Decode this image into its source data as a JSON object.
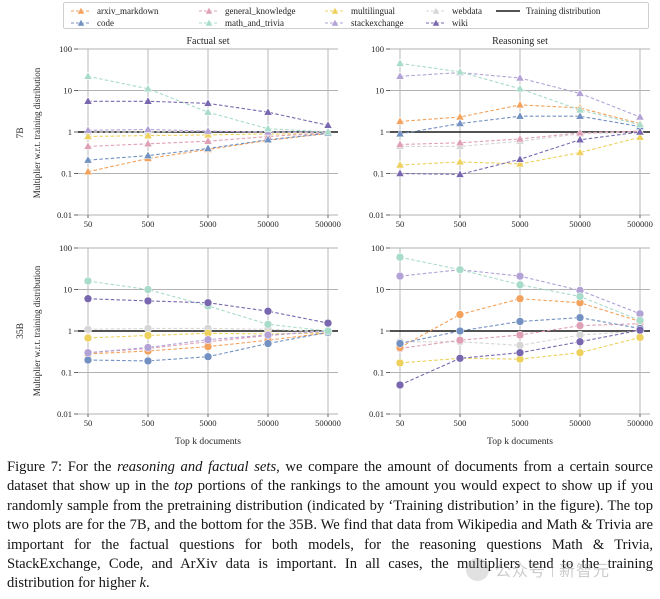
{
  "legend": {
    "training_label": "Training distribution",
    "training_color": "#1a1a1a",
    "entries": [
      {
        "key": "arxiv_markdown",
        "label": "arxiv_markdown",
        "color": "#F2A25C"
      },
      {
        "key": "code",
        "label": "code",
        "color": "#7291C2"
      },
      {
        "key": "general_knowledge",
        "label": "general_knowledge",
        "color": "#DFA0B6"
      },
      {
        "key": "math_and_trivia",
        "label": "math_and_trivia",
        "color": "#A9DBCB"
      },
      {
        "key": "multilingual",
        "label": "multilingual",
        "color": "#EDD15C"
      },
      {
        "key": "stackexchange",
        "label": "stackexchange",
        "color": "#B2A2D6"
      },
      {
        "key": "webdata",
        "label": "webdata",
        "color": "#D6D6D6"
      },
      {
        "key": "wiki",
        "label": "wiki",
        "color": "#7867AE"
      }
    ]
  },
  "chart_data": [
    {
      "id": "7b-factual",
      "type": "line",
      "title": "Factual set",
      "xlabel": "",
      "row_label": "7B",
      "ylabel": "Multiplier w.r.t. training distribution",
      "xscale": "log",
      "yscale": "log",
      "ylim": [
        0.01,
        100
      ],
      "grid": true,
      "x": [
        50,
        500,
        5000,
        50000,
        500000
      ],
      "xtick_labels": [
        "50",
        "500",
        "5000",
        "50000",
        "500000"
      ],
      "yticks": [
        100,
        10,
        1,
        0.1,
        0.01
      ],
      "ytick_labels": [
        "100",
        "10",
        "1",
        "0.1",
        "0.01"
      ],
      "marker": "triangle",
      "training_distribution": 1,
      "series": [
        {
          "name": "webdata",
          "values": [
            1.0,
            1.0,
            1.05,
            1.0,
            0.95
          ]
        },
        {
          "name": "multilingual",
          "values": [
            0.78,
            0.82,
            0.85,
            0.9,
            0.9
          ]
        },
        {
          "name": "general_knowledge",
          "values": [
            0.45,
            0.52,
            0.6,
            0.78,
            0.95
          ]
        },
        {
          "name": "arxiv_markdown",
          "values": [
            0.11,
            0.23,
            0.38,
            0.63,
            0.92
          ]
        },
        {
          "name": "code",
          "values": [
            0.21,
            0.27,
            0.4,
            0.65,
            0.93
          ]
        },
        {
          "name": "stackexchange",
          "values": [
            1.1,
            1.15,
            1.05,
            1.0,
            1.0
          ]
        },
        {
          "name": "math_and_trivia",
          "values": [
            22,
            11,
            3.0,
            1.2,
            1.0
          ]
        },
        {
          "name": "wiki",
          "values": [
            5.5,
            5.5,
            4.9,
            3.0,
            1.45
          ]
        }
      ]
    },
    {
      "id": "7b-reasoning",
      "type": "line",
      "title": "Reasoning set",
      "xlabel": "",
      "row_label": "",
      "ylabel": "",
      "xscale": "log",
      "yscale": "log",
      "ylim": [
        0.01,
        100
      ],
      "grid": true,
      "x": [
        50,
        500,
        5000,
        50000,
        500000
      ],
      "xtick_labels": [
        "50",
        "500",
        "5000",
        "50000",
        "500000"
      ],
      "yticks": [
        100,
        10,
        1,
        0.1,
        0.01
      ],
      "ytick_labels": [
        "100",
        "10",
        "1",
        "0.1",
        "0.01"
      ],
      "marker": "triangle",
      "training_distribution": 1,
      "series": [
        {
          "name": "webdata",
          "values": [
            0.45,
            0.45,
            0.6,
            0.9,
            1.0
          ]
        },
        {
          "name": "multilingual",
          "values": [
            0.16,
            0.19,
            0.17,
            0.32,
            0.75
          ]
        },
        {
          "name": "general_knowledge",
          "values": [
            0.5,
            0.55,
            0.68,
            0.95,
            1.05
          ]
        },
        {
          "name": "arxiv_markdown",
          "values": [
            1.8,
            2.3,
            4.5,
            3.8,
            1.6
          ]
        },
        {
          "name": "code",
          "values": [
            0.9,
            1.6,
            2.4,
            2.4,
            1.35
          ]
        },
        {
          "name": "stackexchange",
          "values": [
            22,
            27,
            20,
            8.5,
            2.3
          ]
        },
        {
          "name": "math_and_trivia",
          "values": [
            45,
            28,
            11,
            3.4,
            1.5
          ]
        },
        {
          "name": "wiki",
          "values": [
            0.1,
            0.095,
            0.22,
            0.65,
            1.0
          ]
        }
      ]
    },
    {
      "id": "35b-factual",
      "type": "line",
      "title": "",
      "xlabel": "Top k documents",
      "row_label": "35B",
      "ylabel": "Multiplier w.r.t. training distribution",
      "xscale": "log",
      "yscale": "log",
      "ylim": [
        0.01,
        100
      ],
      "grid": true,
      "x": [
        50,
        500,
        5000,
        50000,
        500000
      ],
      "xtick_labels": [
        "50",
        "500",
        "5000",
        "50000",
        "500000"
      ],
      "yticks": [
        100,
        10,
        1,
        0.1,
        0.01
      ],
      "ytick_labels": [
        "100",
        "10",
        "1",
        "0.1",
        "0.01"
      ],
      "marker": "circle",
      "training_distribution": 1,
      "series": [
        {
          "name": "webdata",
          "values": [
            1.1,
            1.15,
            1.15,
            1.1,
            0.95
          ]
        },
        {
          "name": "multilingual",
          "values": [
            0.68,
            0.78,
            0.88,
            0.85,
            0.9
          ]
        },
        {
          "name": "general_knowledge",
          "values": [
            0.3,
            0.38,
            0.55,
            0.78,
            1.0
          ]
        },
        {
          "name": "arxiv_markdown",
          "values": [
            0.28,
            0.33,
            0.42,
            0.6,
            0.9
          ]
        },
        {
          "name": "code",
          "values": [
            0.2,
            0.19,
            0.24,
            0.5,
            0.93
          ]
        },
        {
          "name": "stackexchange",
          "values": [
            0.3,
            0.4,
            0.62,
            0.8,
            1.0
          ]
        },
        {
          "name": "math_and_trivia",
          "values": [
            16,
            10,
            4.0,
            1.45,
            1.0
          ]
        },
        {
          "name": "wiki",
          "values": [
            6.0,
            5.3,
            4.8,
            3.0,
            1.55
          ]
        }
      ]
    },
    {
      "id": "35b-reasoning",
      "type": "line",
      "title": "",
      "xlabel": "Top k documents",
      "row_label": "",
      "ylabel": "",
      "xscale": "log",
      "yscale": "log",
      "ylim": [
        0.01,
        100
      ],
      "grid": true,
      "x": [
        50,
        500,
        5000,
        50000,
        500000
      ],
      "xtick_labels": [
        "50",
        "500",
        "5000",
        "50000",
        "500000"
      ],
      "yticks": [
        100,
        10,
        1,
        0.1,
        0.01
      ],
      "ytick_labels": [
        "100",
        "10",
        "1",
        "0.1",
        "0.01"
      ],
      "marker": "circle",
      "training_distribution": 1,
      "series": [
        {
          "name": "webdata",
          "values": [
            0.55,
            0.55,
            0.45,
            0.8,
            1.0
          ]
        },
        {
          "name": "multilingual",
          "values": [
            0.17,
            0.22,
            0.21,
            0.3,
            0.7
          ]
        },
        {
          "name": "general_knowledge",
          "values": [
            0.38,
            0.6,
            0.8,
            1.35,
            1.5
          ]
        },
        {
          "name": "arxiv_markdown",
          "values": [
            0.4,
            2.5,
            6.0,
            4.8,
            1.7
          ]
        },
        {
          "name": "code",
          "values": [
            0.5,
            1.0,
            1.7,
            2.1,
            1.15
          ]
        },
        {
          "name": "stackexchange",
          "values": [
            21,
            30,
            21,
            9.5,
            2.6
          ]
        },
        {
          "name": "math_and_trivia",
          "values": [
            60,
            30,
            13,
            6.8,
            1.8
          ]
        },
        {
          "name": "wiki",
          "values": [
            0.05,
            0.22,
            0.3,
            0.55,
            1.05
          ]
        }
      ]
    }
  ],
  "caption": {
    "parts": [
      {
        "text": "Figure 7: For the ",
        "italic": false
      },
      {
        "text": "reasoning and factual sets",
        "italic": true
      },
      {
        "text": ", we compare the amount of documents from a certain source dataset that show up in the ",
        "italic": false
      },
      {
        "text": "top",
        "italic": true
      },
      {
        "text": " portions of the rankings to the amount you would expect to show up if you randomly sample from the pretraining distribution (indicated by ‘Training distribution’ in the figure). The top two plots are for the 7B, and the bottom for the 35B. We find that data from Wikipedia and Math & Trivia are important for the factual questions for both models, for the reasoning questions Math & Trivia, StackExchange, Code, and ArXiv data is important. In all cases, the multipliers tend to the training distribution for higher ",
        "italic": false
      },
      {
        "text": "k",
        "italic": true
      },
      {
        "text": ".",
        "italic": false
      }
    ]
  },
  "watermark": {
    "text1": "公众号",
    "text2": "新智元"
  }
}
